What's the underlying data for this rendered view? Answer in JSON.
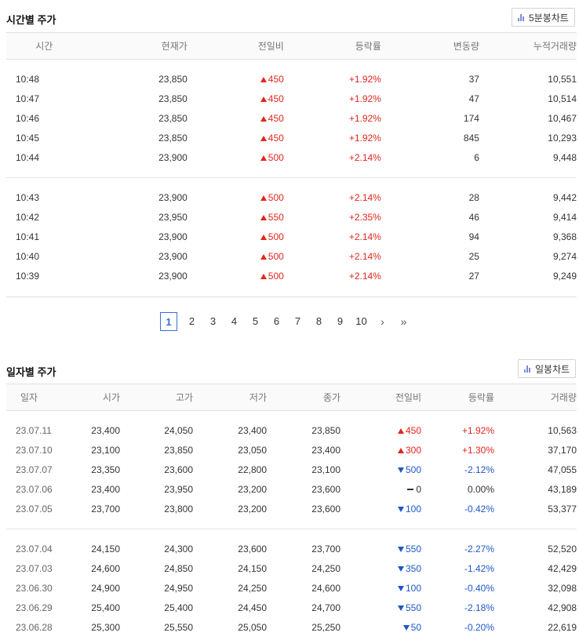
{
  "time_section": {
    "title": "시간별 주가",
    "chart_button": "5분봉차트",
    "columns": [
      "시간",
      "현재가",
      "전일비",
      "등락률",
      "변동량",
      "누적거래량"
    ],
    "groups": [
      [
        {
          "time": "10:48",
          "price": "23,850",
          "dir": "up",
          "change": "450",
          "rate": "+1.92%",
          "vol_change": "37",
          "cum_vol": "10,551"
        },
        {
          "time": "10:47",
          "price": "23,850",
          "dir": "up",
          "change": "450",
          "rate": "+1.92%",
          "vol_change": "47",
          "cum_vol": "10,514"
        },
        {
          "time": "10:46",
          "price": "23,850",
          "dir": "up",
          "change": "450",
          "rate": "+1.92%",
          "vol_change": "174",
          "cum_vol": "10,467"
        },
        {
          "time": "10:45",
          "price": "23,850",
          "dir": "up",
          "change": "450",
          "rate": "+1.92%",
          "vol_change": "845",
          "cum_vol": "10,293"
        },
        {
          "time": "10:44",
          "price": "23,900",
          "dir": "up",
          "change": "500",
          "rate": "+2.14%",
          "vol_change": "6",
          "cum_vol": "9,448"
        }
      ],
      [
        {
          "time": "10:43",
          "price": "23,900",
          "dir": "up",
          "change": "500",
          "rate": "+2.14%",
          "vol_change": "28",
          "cum_vol": "9,442"
        },
        {
          "time": "10:42",
          "price": "23,950",
          "dir": "up",
          "change": "550",
          "rate": "+2.35%",
          "vol_change": "46",
          "cum_vol": "9,414"
        },
        {
          "time": "10:41",
          "price": "23,900",
          "dir": "up",
          "change": "500",
          "rate": "+2.14%",
          "vol_change": "94",
          "cum_vol": "9,368"
        },
        {
          "time": "10:40",
          "price": "23,900",
          "dir": "up",
          "change": "500",
          "rate": "+2.14%",
          "vol_change": "25",
          "cum_vol": "9,274"
        },
        {
          "time": "10:39",
          "price": "23,900",
          "dir": "up",
          "change": "500",
          "rate": "+2.14%",
          "vol_change": "27",
          "cum_vol": "9,249"
        }
      ]
    ]
  },
  "pagination": {
    "pages": [
      "1",
      "2",
      "3",
      "4",
      "5",
      "6",
      "7",
      "8",
      "9",
      "10"
    ],
    "active": "1",
    "next": "›",
    "last": "»"
  },
  "daily_section": {
    "title": "일자별 주가",
    "chart_button": "일봉차트",
    "columns": [
      "일자",
      "시가",
      "고가",
      "저가",
      "종가",
      "전일비",
      "등락률",
      "거래량"
    ],
    "groups": [
      [
        {
          "date": "23.07.11",
          "open": "23,400",
          "high": "24,050",
          "low": "23,400",
          "close": "23,850",
          "dir": "up",
          "change": "450",
          "rate": "+1.92%",
          "volume": "10,563"
        },
        {
          "date": "23.07.10",
          "open": "23,100",
          "high": "23,850",
          "low": "23,050",
          "close": "23,400",
          "dir": "up",
          "change": "300",
          "rate": "+1.30%",
          "volume": "37,170"
        },
        {
          "date": "23.07.07",
          "open": "23,350",
          "high": "23,600",
          "low": "22,800",
          "close": "23,100",
          "dir": "down",
          "change": "500",
          "rate": "-2.12%",
          "volume": "47,055"
        },
        {
          "date": "23.07.06",
          "open": "23,400",
          "high": "23,950",
          "low": "23,200",
          "close": "23,600",
          "dir": "flat",
          "change": "0",
          "rate": "0.00%",
          "volume": "43,189"
        },
        {
          "date": "23.07.05",
          "open": "23,700",
          "high": "23,800",
          "low": "23,200",
          "close": "23,600",
          "dir": "down",
          "change": "100",
          "rate": "-0.42%",
          "volume": "53,377"
        }
      ],
      [
        {
          "date": "23.07.04",
          "open": "24,150",
          "high": "24,300",
          "low": "23,600",
          "close": "23,700",
          "dir": "down",
          "change": "550",
          "rate": "-2.27%",
          "volume": "52,520"
        },
        {
          "date": "23.07.03",
          "open": "24,600",
          "high": "24,850",
          "low": "24,150",
          "close": "24,250",
          "dir": "down",
          "change": "350",
          "rate": "-1.42%",
          "volume": "42,429"
        },
        {
          "date": "23.06.30",
          "open": "24,900",
          "high": "24,950",
          "low": "24,250",
          "close": "24,600",
          "dir": "down",
          "change": "100",
          "rate": "-0.40%",
          "volume": "32,098"
        },
        {
          "date": "23.06.29",
          "open": "25,400",
          "high": "25,400",
          "low": "24,450",
          "close": "24,700",
          "dir": "down",
          "change": "550",
          "rate": "-2.18%",
          "volume": "42,908"
        },
        {
          "date": "23.06.28",
          "open": "25,300",
          "high": "25,550",
          "low": "25,050",
          "close": "25,250",
          "dir": "down",
          "change": "50",
          "rate": "-0.20%",
          "volume": "22,619"
        }
      ]
    ]
  }
}
